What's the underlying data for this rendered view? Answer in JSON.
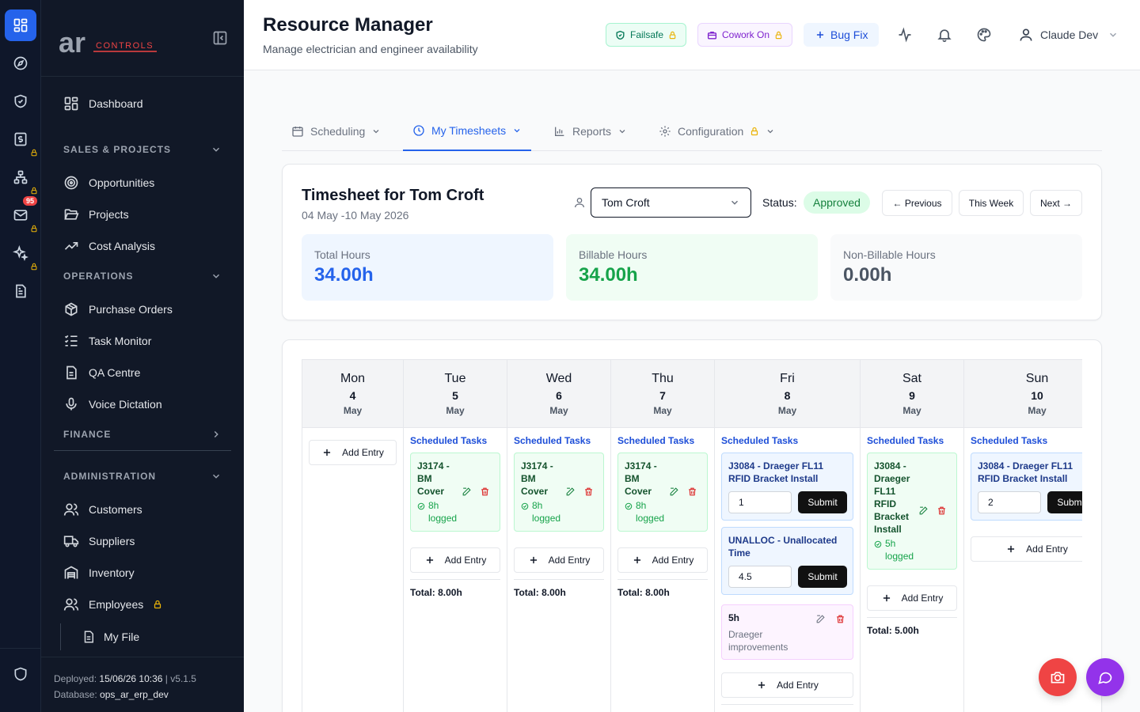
{
  "header": {
    "title": "Resource Manager",
    "subtitle": "Manage electrician and engineer availability",
    "failsafe_label": "Failsafe",
    "cowork_label": "Cowork On",
    "bugfix_label": "Bug Fix",
    "user_name": "Claude Dev"
  },
  "rail": {
    "mail_badge": "95"
  },
  "sidebar": {
    "logo_big": "ar",
    "logo_small": "CONTROLS",
    "dashboard": "Dashboard",
    "sales_header": "SALES & PROJECTS",
    "sales_items": [
      "Opportunities",
      "Projects",
      "Cost Analysis"
    ],
    "operations_header": "OPERATIONS",
    "operations_items": [
      "Purchase Orders",
      "Task Monitor",
      "QA Centre",
      "Voice Dictation"
    ],
    "finance_header": "FINANCE",
    "admin_header": "ADMINISTRATION",
    "admin_items": [
      "Customers",
      "Suppliers",
      "Inventory",
      "Employees"
    ],
    "my_file": "My File",
    "deployed_label": "Deployed:",
    "deployed_value": "15/06/26 10:36",
    "version": "v5.1.5",
    "database_label": "Database:",
    "database_value": "ops_ar_erp_dev"
  },
  "tabs": [
    {
      "label": "Scheduling"
    },
    {
      "label": "My Timesheets"
    },
    {
      "label": "Reports"
    },
    {
      "label": "Configuration"
    }
  ],
  "timesheet": {
    "title": "Timesheet for Tom Croft",
    "range": "04 May -10 May 2026",
    "employee": "Tom Croft",
    "status_label": "Status:",
    "status_value": "Approved",
    "prev_label": "← Previous",
    "this_week_label": "This Week",
    "next_label": "Next →",
    "total_label": "Total Hours",
    "total_value": "34.00h",
    "billable_label": "Billable Hours",
    "billable_value": "34.00h",
    "nonbillable_label": "Non-Billable Hours",
    "nonbillable_value": "0.00h"
  },
  "week": {
    "scheduled_label": "Scheduled Tasks",
    "add_label": "Add Entry",
    "submit_label": "Submit",
    "days": [
      {
        "day": "Mon",
        "num": "4",
        "month": "May"
      },
      {
        "day": "Tue",
        "num": "5",
        "month": "May",
        "task": [
          "J3174 -",
          "BM",
          "Cover"
        ],
        "logged": [
          "8h",
          "logged"
        ],
        "total": "Total: 8.00h"
      },
      {
        "day": "Wed",
        "num": "6",
        "month": "May",
        "task": [
          "J3174 -",
          "BM",
          "Cover"
        ],
        "logged": [
          "8h",
          "logged"
        ],
        "total": "Total: 8.00h"
      },
      {
        "day": "Thu",
        "num": "7",
        "month": "May",
        "task": [
          "J3174 -",
          "BM",
          "Cover"
        ],
        "logged": [
          "8h",
          "logged"
        ],
        "total": "Total: 8.00h"
      },
      {
        "day": "Fri",
        "num": "8",
        "month": "May",
        "task1": [
          "J3084 - Draeger FL11",
          "RFID Bracket Install"
        ],
        "hours1": "1",
        "task2": [
          "UNALLOC - Unallocated",
          "Time"
        ],
        "hours2": "4.5",
        "entry_hours": "5h",
        "entry_desc": [
          "Draeger",
          "improvements"
        ]
      },
      {
        "day": "Sat",
        "num": "9",
        "month": "May",
        "task": [
          "J3084 -",
          "Draeger",
          "FL11",
          "RFID",
          "Bracket",
          "Install"
        ],
        "logged": [
          "5h",
          "logged"
        ],
        "total": "Total: 5.00h"
      },
      {
        "day": "Sun",
        "num": "10",
        "month": "May",
        "task": [
          "J3084 - Draeger FL11",
          "RFID Bracket Install"
        ],
        "hours": "2"
      }
    ]
  },
  "colors": {
    "accent": "#2563eb",
    "sidebar_bg": "#111827",
    "rail_bg": "#0f172a",
    "approved": "#15803d",
    "camera_fab": "#ef4444",
    "chat_fab": "#9333ea"
  }
}
